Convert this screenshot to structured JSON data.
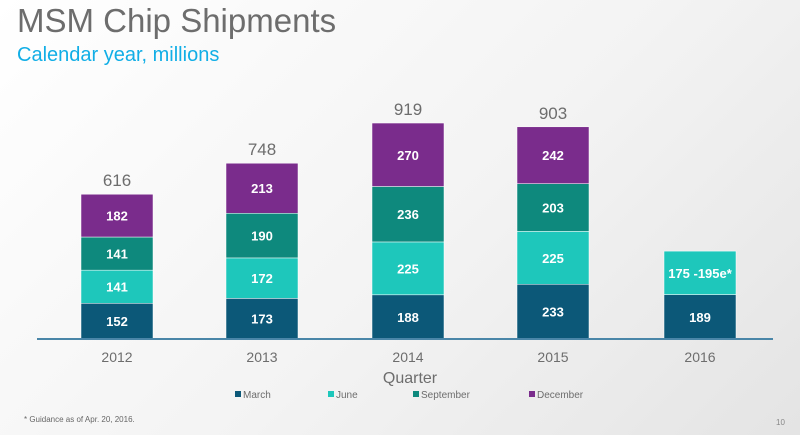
{
  "chart_data": {
    "type": "bar",
    "stacked": true,
    "title": "MSM Chip Shipments",
    "subtitle": "Calendar year, millions",
    "xlabel": "Quarter",
    "categories": [
      "2012",
      "2013",
      "2014",
      "2015",
      "2016"
    ],
    "totals": [
      "616",
      "748",
      "919",
      "903",
      ""
    ],
    "series": [
      {
        "name": "March",
        "color": "#0c5878",
        "values": [
          152,
          173,
          188,
          233,
          189
        ],
        "labels": [
          "152",
          "173",
          "188",
          "233",
          "189"
        ]
      },
      {
        "name": "June",
        "color": "#1ec7bb",
        "values": [
          141,
          172,
          225,
          225,
          185
        ],
        "labels": [
          "141",
          "172",
          "225",
          "225",
          "175 -195e*"
        ]
      },
      {
        "name": "September",
        "color": "#0e897d",
        "values": [
          141,
          190,
          236,
          203,
          null
        ],
        "labels": [
          "141",
          "190",
          "236",
          "203",
          ""
        ]
      },
      {
        "name": "December",
        "color": "#7a2c8c",
        "values": [
          182,
          213,
          270,
          242,
          null
        ],
        "labels": [
          "182",
          "213",
          "270",
          "242",
          ""
        ]
      }
    ],
    "legend": "bottom",
    "grid": false
  },
  "footnote": "* Guidance as of Apr. 20, 2016.",
  "page_number": "10"
}
